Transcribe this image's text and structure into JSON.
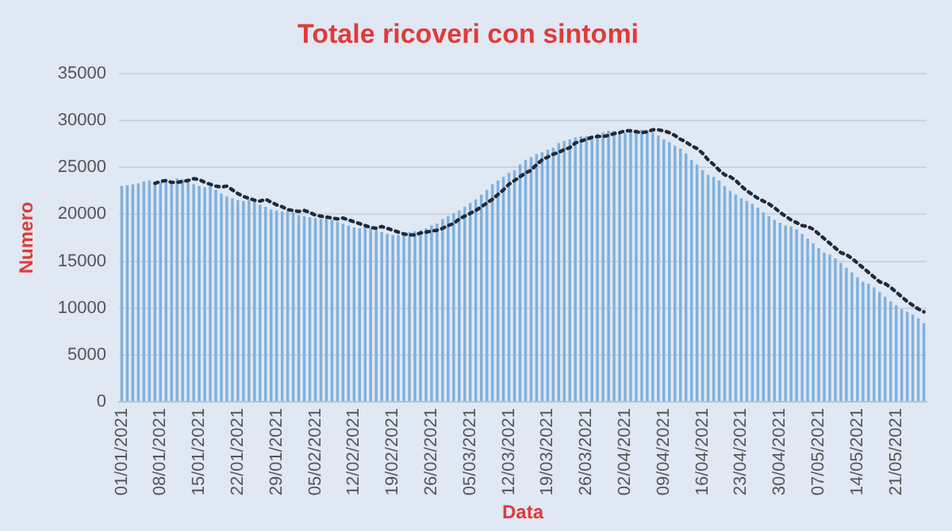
{
  "chart_data": {
    "type": "bar",
    "title": "Totale ricoveri con sintomi",
    "xlabel": "Data",
    "ylabel": "Numero",
    "categories": [
      "01/01/2021",
      null,
      null,
      null,
      null,
      null,
      null,
      "08/01/2021",
      null,
      null,
      null,
      null,
      null,
      null,
      "15/01/2021",
      null,
      null,
      null,
      null,
      null,
      null,
      "22/01/2021",
      null,
      null,
      null,
      null,
      null,
      null,
      "29/01/2021",
      null,
      null,
      null,
      null,
      null,
      null,
      "05/02/2021",
      null,
      null,
      null,
      null,
      null,
      null,
      "12/02/2021",
      null,
      null,
      null,
      null,
      null,
      null,
      "19/02/2021",
      null,
      null,
      null,
      null,
      null,
      null,
      "26/02/2021",
      null,
      null,
      null,
      null,
      null,
      null,
      "05/03/2021",
      null,
      null,
      null,
      null,
      null,
      null,
      "12/03/2021",
      null,
      null,
      null,
      null,
      null,
      null,
      "19/03/2021",
      null,
      null,
      null,
      null,
      null,
      null,
      "26/03/2021",
      null,
      null,
      null,
      null,
      null,
      null,
      "02/04/2021",
      null,
      null,
      null,
      null,
      null,
      null,
      "09/04/2021",
      null,
      null,
      null,
      null,
      null,
      null,
      "16/04/2021",
      null,
      null,
      null,
      null,
      null,
      null,
      "23/04/2021",
      null,
      null,
      null,
      null,
      null,
      null,
      "30/04/2021",
      null,
      null,
      null,
      null,
      null,
      null,
      "07/05/2021",
      null,
      null,
      null,
      null,
      null,
      null,
      "14/05/2021",
      null,
      null,
      null,
      null,
      null,
      null,
      "21/05/2021",
      null,
      null,
      null,
      null,
      null
    ],
    "series": [
      {
        "color": "#7fb0dd",
        "values": [
          23000,
          23100,
          23200,
          23300,
          23500,
          23600,
          23400,
          23400,
          23500,
          23600,
          23800,
          23700,
          23400,
          23200,
          23000,
          22900,
          23000,
          22600,
          22200,
          21900,
          21700,
          21500,
          21400,
          21600,
          21300,
          21000,
          20800,
          20500,
          20400,
          20300,
          20400,
          20200,
          19900,
          19800,
          19700,
          19600,
          19500,
          19600,
          19400,
          19200,
          19000,
          18800,
          18600,
          18500,
          18700,
          18500,
          18300,
          18100,
          17900,
          17800,
          17800,
          18000,
          18100,
          18200,
          18300,
          18500,
          18800,
          19000,
          19500,
          19800,
          20100,
          20400,
          20800,
          21200,
          21600,
          22100,
          22600,
          23200,
          23600,
          24000,
          24400,
          24700,
          25300,
          25800,
          26100,
          26400,
          26600,
          26900,
          27100,
          27600,
          27800,
          28000,
          28200,
          28300,
          28300,
          28400,
          28600,
          28700,
          28900,
          28900,
          28800,
          28700,
          28800,
          29000,
          29000,
          28900,
          28700,
          28400,
          28000,
          27700,
          27300,
          27000,
          26500,
          25800,
          25300,
          24700,
          24200,
          24000,
          23600,
          23000,
          22500,
          22100,
          21700,
          21400,
          21100,
          20700,
          20200,
          19800,
          19400,
          19100,
          18800,
          18700,
          18400,
          17900,
          17400,
          16900,
          16400,
          15900,
          15700,
          15300,
          14800,
          14300,
          13800,
          13300,
          12800,
          12600,
          12200,
          11700,
          11200,
          10700,
          10300,
          9900,
          9600,
          9300,
          8900,
          8400
        ]
      },
      {
        "type": "line",
        "color": "#1f2a3a",
        "line_style": "dotted",
        "marker": "none",
        "values": [
          null,
          null,
          null,
          null,
          null,
          null,
          23300,
          23500,
          23600,
          23400,
          23400,
          23500,
          23600,
          23800,
          23700,
          23400,
          23200,
          23000,
          22900,
          23000,
          22600,
          22200,
          21900,
          21700,
          21500,
          21400,
          21600,
          21300,
          21000,
          20800,
          20500,
          20400,
          20300,
          20400,
          20200,
          19900,
          19800,
          19700,
          19600,
          19500,
          19600,
          19400,
          19200,
          19000,
          18800,
          18600,
          18500,
          18700,
          18500,
          18300,
          18100,
          17900,
          17800,
          17800,
          18000,
          18100,
          18200,
          18300,
          18500,
          18800,
          19000,
          19500,
          19800,
          20100,
          20400,
          20800,
          21200,
          21600,
          22100,
          22600,
          23200,
          23600,
          24000,
          24400,
          24700,
          25300,
          25800,
          26100,
          26400,
          26600,
          26900,
          27100,
          27600,
          27800,
          28000,
          28200,
          28300,
          28300,
          28400,
          28600,
          28700,
          28900,
          28900,
          28800,
          28700,
          28800,
          29000,
          29000,
          28900,
          28700,
          28400,
          28000,
          27700,
          27300,
          27000,
          26500,
          25800,
          25300,
          24700,
          24200,
          24000,
          23600,
          23000,
          22500,
          22100,
          21700,
          21400,
          21100,
          20700,
          20200,
          19800,
          19400,
          19100,
          18800,
          18700,
          18400,
          17900,
          17400,
          16900,
          16400,
          15900,
          15700,
          15300,
          14800,
          14300,
          13800,
          13300,
          12800,
          12600,
          12200,
          11700,
          11200,
          10700,
          10300,
          9900,
          9600
        ]
      }
    ],
    "ylim": [
      0,
      35000
    ],
    "yticks": [
      0,
      5000,
      10000,
      15000,
      20000,
      25000,
      30000,
      35000
    ],
    "grid": "y",
    "legend": false
  }
}
